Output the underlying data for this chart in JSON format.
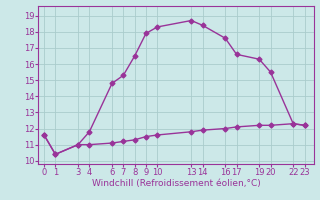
{
  "title": "",
  "xlabel": "Windchill (Refroidissement éolien,°C)",
  "ylabel": "",
  "bg_color": "#cce8e8",
  "line_color": "#993399",
  "grid_color": "#aacccc",
  "x_ticks": [
    0,
    1,
    3,
    4,
    6,
    7,
    8,
    9,
    10,
    13,
    14,
    16,
    17,
    19,
    20,
    22,
    23
  ],
  "x_tick_labels": [
    "0",
    "1",
    "3",
    "4",
    "6",
    "7",
    "8",
    "9",
    "10",
    "13",
    "14",
    "16",
    "17",
    "19",
    "20",
    "22",
    "23"
  ],
  "y_ticks": [
    10,
    11,
    12,
    13,
    14,
    15,
    16,
    17,
    18,
    19
  ],
  "ylim": [
    9.8,
    19.6
  ],
  "xlim": [
    -0.5,
    23.8
  ],
  "series1_x": [
    0,
    1,
    3,
    4,
    6,
    7,
    8,
    9,
    10,
    13,
    14,
    16,
    17,
    19,
    20,
    22,
    23
  ],
  "series1_y": [
    11.6,
    10.4,
    11.0,
    11.8,
    14.8,
    15.3,
    16.5,
    17.9,
    18.3,
    18.7,
    18.4,
    17.6,
    16.6,
    16.3,
    15.5,
    12.3,
    12.2
  ],
  "series2_x": [
    0,
    1,
    3,
    4,
    6,
    7,
    8,
    9,
    10,
    13,
    14,
    16,
    17,
    19,
    20,
    22,
    23
  ],
  "series2_y": [
    11.6,
    10.4,
    11.0,
    11.0,
    11.1,
    11.2,
    11.3,
    11.5,
    11.6,
    11.8,
    11.9,
    12.0,
    12.1,
    12.2,
    12.2,
    12.3,
    12.2
  ],
  "marker": "D",
  "marker_size": 2.5,
  "line_width": 1.0,
  "font_size_tick": 6,
  "font_size_xlabel": 6.5
}
